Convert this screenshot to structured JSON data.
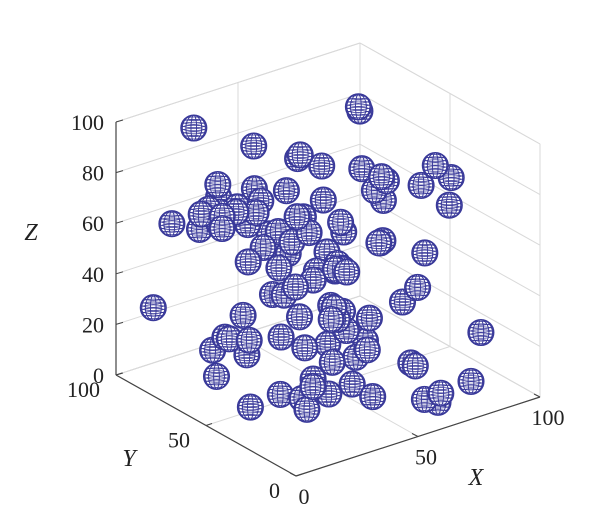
{
  "chart_data": {
    "type": "scatter3d",
    "title": "",
    "xlabel": "X",
    "ylabel": "Y",
    "zlabel": "Z",
    "xlim": [
      0,
      100
    ],
    "ylim": [
      0,
      100
    ],
    "zlim": [
      0,
      100
    ],
    "x_ticks": [
      "0",
      "50",
      "100"
    ],
    "y_ticks": [
      "0",
      "50",
      "100"
    ],
    "z_ticks": [
      "0",
      "20",
      "40",
      "60",
      "80",
      "100"
    ],
    "grid": true,
    "marker": "wireframe-sphere",
    "marker_color": "#3a3a9a",
    "sphere_radius": 5,
    "spheres": [
      [
        26.4,
        59.3,
        98.5
      ],
      [
        20.6,
        84.7,
        97.3
      ],
      [
        70.0,
        17.5,
        93.9
      ],
      [
        7.1,
        9.0,
        96.7
      ],
      [
        19.0,
        31.1,
        94.4
      ],
      [
        13.4,
        51.5,
        79.6
      ],
      [
        69.7,
        25.0,
        83.1
      ],
      [
        65.6,
        41.4,
        81.3
      ],
      [
        8.1,
        59.6,
        79.1
      ],
      [
        5.7,
        60.4,
        77.6
      ],
      [
        8.7,
        52.8,
        78.8
      ],
      [
        3.5,
        5.0,
        71.6
      ],
      [
        51.6,
        67.6,
        83.8
      ],
      [
        12.3,
        60.1,
        87.4
      ],
      [
        30.6,
        64.6,
        78.2
      ],
      [
        27.2,
        56.4,
        77.7
      ],
      [
        55.9,
        74.9,
        78.1
      ],
      [
        17.7,
        16.7,
        84.0
      ],
      [
        2.4,
        44.3,
        79.4
      ],
      [
        21.4,
        51.2,
        77.0
      ],
      [
        72.7,
        48.3,
        74.7
      ],
      [
        86.8,
        83.0,
        85.7
      ],
      [
        12.8,
        59.9,
        76.4
      ],
      [
        24.0,
        59.3,
        68.2
      ],
      [
        17.2,
        76.9,
        61.4
      ],
      [
        29.8,
        83.4,
        67.7
      ],
      [
        27.6,
        70.1,
        69.8
      ],
      [
        29.8,
        58.6,
        57.6
      ],
      [
        16.3,
        64.7,
        68.4
      ],
      [
        95.0,
        93.3,
        77.3
      ],
      [
        17.6,
        50.4,
        59.0
      ],
      [
        81.4,
        73.8,
        66.6
      ],
      [
        37.6,
        29.1,
        58.3
      ],
      [
        74.2,
        86.3,
        64.9
      ],
      [
        22.3,
        9.1,
        55.9
      ],
      [
        78.0,
        62.2,
        63.7
      ],
      [
        39.6,
        25.5,
        58.1
      ],
      [
        19.2,
        32.7,
        52.4
      ],
      [
        91.1,
        38.3,
        63.3
      ],
      [
        65.7,
        43.0,
        54.5
      ],
      [
        46.3,
        65.1,
        52.0
      ],
      [
        68.5,
        68.1,
        51.7
      ],
      [
        72.4,
        83.0,
        53.3
      ],
      [
        37.9,
        41.8,
        48.9
      ],
      [
        48.1,
        75.1,
        51.6
      ],
      [
        18.4,
        5.4,
        54.0
      ],
      [
        33.7,
        55.2,
        49.7
      ],
      [
        60.4,
        58.9,
        41.6
      ],
      [
        46.4,
        41.2,
        50.1
      ],
      [
        47.7,
        38.6,
        51.6
      ],
      [
        93.5,
        78.2,
        48.5
      ],
      [
        67.6,
        87.5,
        46.4
      ],
      [
        54.1,
        62.0,
        39.4
      ],
      [
        31.7,
        56.0,
        39.5
      ],
      [
        30.3,
        18.0,
        45.3
      ],
      [
        16.3,
        30.4,
        37.7
      ],
      [
        11.0,
        94.2,
        25.5
      ],
      [
        40.7,
        35.9,
        40.4
      ],
      [
        38.2,
        23.8,
        36.1
      ],
      [
        45.0,
        21.4,
        27.3
      ],
      [
        19.4,
        52.3,
        26.7
      ],
      [
        58.6,
        53.6,
        25.4
      ],
      [
        25.1,
        24.5,
        20.7
      ],
      [
        63.5,
        19.8,
        15.8
      ],
      [
        44.3,
        58.1,
        25.9
      ],
      [
        18.9,
        62.7,
        23.3
      ],
      [
        37.4,
        45.8,
        20.7
      ],
      [
        82.3,
        44.0,
        31.3
      ],
      [
        84.6,
        88.2,
        34.8
      ],
      [
        91.8,
        77.8,
        32.4
      ],
      [
        91.6,
        75.9,
        34.1
      ],
      [
        23.9,
        71.9,
        18.7
      ],
      [
        51.3,
        51.9,
        15.4
      ],
      [
        32.1,
        70.8,
        9.6
      ],
      [
        71.9,
        33.7,
        8.8
      ],
      [
        73.5,
        2.4,
        13.5
      ],
      [
        41.7,
        38.3,
        4.1
      ],
      [
        29.8,
        37.1,
        6.5
      ],
      [
        11.1,
        9.0,
        19.3
      ],
      [
        47.1,
        32.6,
        8.6
      ],
      [
        29.5,
        48.7,
        3.6
      ],
      [
        12.8,
        61.5,
        10.8
      ],
      [
        29.2,
        85.9,
        6.3
      ],
      [
        62.4,
        46.0,
        15.6
      ],
      [
        63.4,
        5.5,
        10.7
      ],
      [
        46.0,
        21.6,
        39.4
      ],
      [
        45.1,
        18.5,
        9.9
      ],
      [
        71.8,
        80.1,
        34.2
      ],
      [
        93.5,
        40.5,
        72.6
      ],
      [
        6.1,
        33.6,
        11.9
      ],
      [
        8.3,
        1.9,
        32.0
      ],
      [
        51.9,
        74.7,
        41.9
      ],
      [
        53.9,
        87.9,
        43.8
      ],
      [
        93.2,
        54.8,
        37.2
      ],
      [
        59.7,
        9.6,
        7.8
      ],
      [
        90.7,
        63.8,
        15.0
      ],
      [
        36.8,
        29.7,
        21.6
      ],
      [
        50.8,
        35.7,
        16.8
      ],
      [
        63.3,
        6.9,
        6.6
      ],
      [
        7.9,
        40.1,
        45.0
      ],
      [
        90.6,
        20.1,
        20.4
      ],
      [
        17.6,
        92.8,
        57.2
      ]
    ]
  }
}
